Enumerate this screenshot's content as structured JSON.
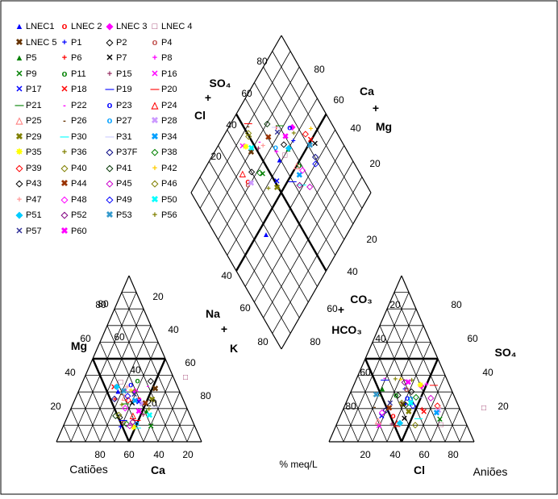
{
  "chart_data": {
    "type": "piper",
    "title": "",
    "legend": [
      {
        "name": "LNEC1",
        "symbol": "▲",
        "color": "#0000ff"
      },
      {
        "name": "LNEC 2",
        "symbol": "o",
        "color": "#ff0000"
      },
      {
        "name": "LNEC 3",
        "symbol": "◆",
        "color": "#ff00ff"
      },
      {
        "name": "LNEC 4",
        "symbol": "□",
        "color": "#993366"
      },
      {
        "name": "LNEC 5",
        "symbol": "✖",
        "color": "#663300"
      },
      {
        "name": "P1",
        "symbol": "+",
        "color": "#0000ff"
      },
      {
        "name": "P2",
        "symbol": "◇",
        "color": "#000000"
      },
      {
        "name": "P4",
        "symbol": "o",
        "color": "#c0504d"
      },
      {
        "name": "P5",
        "symbol": "▲",
        "color": "#008000"
      },
      {
        "name": "P6",
        "symbol": "+",
        "color": "#ff0000"
      },
      {
        "name": "P7",
        "symbol": "✕",
        "color": "#000000"
      },
      {
        "name": "P8",
        "symbol": "+",
        "color": "#ff00ff"
      },
      {
        "name": "P9",
        "symbol": "✕",
        "color": "#008000"
      },
      {
        "name": "P11",
        "symbol": "o",
        "color": "#008000"
      },
      {
        "name": "P15",
        "symbol": "+",
        "color": "#993366"
      },
      {
        "name": "P16",
        "symbol": "✕",
        "color": "#ff00ff"
      },
      {
        "name": "P17",
        "symbol": "✕",
        "color": "#0000ff"
      },
      {
        "name": "P18",
        "symbol": "✕",
        "color": "#ff0000"
      },
      {
        "name": "P19",
        "symbol": "—",
        "color": "#0000ff"
      },
      {
        "name": "P20",
        "symbol": "—",
        "color": "#ff0000"
      },
      {
        "name": "P21",
        "symbol": "—",
        "color": "#008000"
      },
      {
        "name": "P22",
        "symbol": "-",
        "color": "#ff00ff"
      },
      {
        "name": "P23",
        "symbol": "o",
        "color": "#0000ff"
      },
      {
        "name": "P24",
        "symbol": "△",
        "color": "#ff0000"
      },
      {
        "name": "P25",
        "symbol": "△",
        "color": "#ff8080"
      },
      {
        "name": "P26",
        "symbol": "-",
        "color": "#663300"
      },
      {
        "name": "P27",
        "symbol": "o",
        "color": "#00a0ff"
      },
      {
        "name": "P28",
        "symbol": "✖",
        "color": "#cc99ff"
      },
      {
        "name": "P29",
        "symbol": "✖",
        "color": "#808000"
      },
      {
        "name": "P30",
        "symbol": "—",
        "color": "#00ffff"
      },
      {
        "name": "P31",
        "symbol": "—",
        "color": "#ccccff"
      },
      {
        "name": "P34",
        "symbol": "✖",
        "color": "#00a0ff"
      },
      {
        "name": "P35",
        "symbol": "✸",
        "color": "#ffff00"
      },
      {
        "name": "P36",
        "symbol": "+",
        "color": "#808000"
      },
      {
        "name": "P37F",
        "symbol": "◇",
        "color": "#000080"
      },
      {
        "name": "P38",
        "symbol": "◇",
        "color": "#008000"
      },
      {
        "name": "P39",
        "symbol": "◇",
        "color": "#ff0000"
      },
      {
        "name": "P40",
        "symbol": "◇",
        "color": "#808000"
      },
      {
        "name": "P41",
        "symbol": "◇",
        "color": "#003300"
      },
      {
        "name": "P42",
        "symbol": "+",
        "color": "#ffcc00"
      },
      {
        "name": "P43",
        "symbol": "◇",
        "color": "#000000"
      },
      {
        "name": "P44",
        "symbol": "✖",
        "color": "#993300"
      },
      {
        "name": "P45",
        "symbol": "◇",
        "color": "#cc00cc"
      },
      {
        "name": "P46",
        "symbol": "◇",
        "color": "#808000"
      },
      {
        "name": "P47",
        "symbol": "+",
        "color": "#ff9999"
      },
      {
        "name": "P48",
        "symbol": "◇",
        "color": "#ff00ff"
      },
      {
        "name": "P49",
        "symbol": "◇",
        "color": "#0000ff"
      },
      {
        "name": "P50",
        "symbol": "✖",
        "color": "#00ffff"
      },
      {
        "name": "P51",
        "symbol": "◆",
        "color": "#00ccff"
      },
      {
        "name": "P52",
        "symbol": "◇",
        "color": "#800080"
      },
      {
        "name": "P53",
        "symbol": "✖",
        "color": "#3399cc"
      },
      {
        "name": "P56",
        "symbol": "+",
        "color": "#808000"
      },
      {
        "name": "P57",
        "symbol": "✕",
        "color": "#333399"
      },
      {
        "name": "P60",
        "symbol": "✖",
        "color": "#ff00ff"
      }
    ],
    "cation_triangle": {
      "corner_label_left": "Catiões",
      "axis_label_mg": "Mg",
      "axis_label_na_1": "Na",
      "axis_label_na_2": "+",
      "axis_label_na_3": "K",
      "axis_label_ca": "Ca",
      "ticks_left": [
        "80",
        "60",
        "40",
        "20"
      ],
      "ticks_left_vals": [
        "20",
        "40",
        "60",
        "80"
      ],
      "ticks_right": [
        "20",
        "40",
        "60",
        "80"
      ],
      "ticks_bottom": [
        "80",
        "60",
        "40",
        "20"
      ]
    },
    "anion_triangle": {
      "corner_label_right": "Aniões",
      "axis_label_left_1": "CO₃",
      "axis_label_left_2": "HCO₃",
      "axis_label_so4": "SO₄",
      "axis_label_cl": "Cl",
      "ticks_left": [
        "20",
        "40",
        "60",
        "80"
      ],
      "ticks_right_top": [
        "80",
        "60",
        "40",
        "20"
      ],
      "ticks_bottom": [
        "20",
        "40",
        "60",
        "80"
      ],
      "ticks_right": [
        "80",
        "60",
        "40",
        "20"
      ]
    },
    "diamond": {
      "label_so4": "SO₄",
      "label_plus1": "+",
      "label_cl": "Cl",
      "label_ca": "Ca",
      "label_plus2": "+",
      "label_mg": "Mg",
      "ticks_upper_left": [
        "80",
        "60",
        "40",
        "20"
      ],
      "ticks_upper_right": [
        "80",
        "60",
        "40",
        "20"
      ],
      "ticks_lower_left": [
        "20",
        "40",
        "60",
        "80"
      ],
      "ticks_lower_right": [
        "20",
        "40",
        "60",
        "80"
      ]
    },
    "units_label": "% meq/L",
    "grid": true
  }
}
